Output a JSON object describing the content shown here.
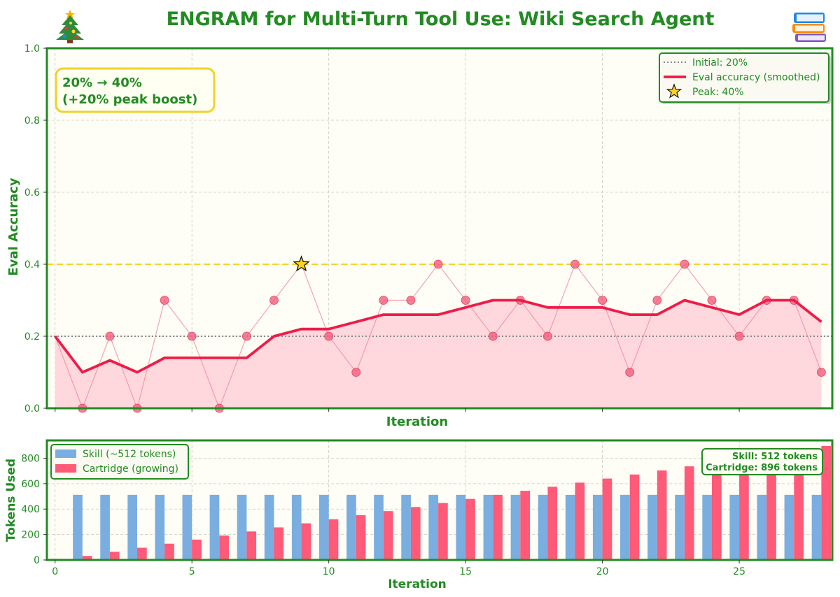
{
  "title": "ENGRAM for Multi-Turn Tool Use: Wiki Search Agent",
  "colors": {
    "accent": "#228B22",
    "eval": "#EE1C47",
    "eval_fill": "#FFD6DB",
    "skill": "#7AAEE0",
    "cartridge": "#FF5A78",
    "peak_line": "#F2D52A",
    "initial_line": "#888888",
    "plot_bg": "#FEFEF6"
  },
  "chart_data": [
    {
      "type": "line",
      "xlabel": "Iteration",
      "ylabel": "Eval Accuracy",
      "xlim": [
        -0.3,
        28.4
      ],
      "ylim": [
        0.0,
        1.0
      ],
      "y_ticks": [
        "0.0",
        "0.2",
        "0.4",
        "0.6",
        "0.8",
        "1.0"
      ],
      "grid": true,
      "legend_position": "top-right",
      "legend": [
        "Initial: 20%",
        "Eval accuracy (smoothed)",
        "Peak: 40%"
      ],
      "annotation": {
        "line1": "20% → 40%",
        "line2": "(+20% peak boost)"
      },
      "x": [
        0,
        1,
        2,
        3,
        4,
        5,
        6,
        7,
        8,
        9,
        10,
        11,
        12,
        13,
        14,
        15,
        16,
        17,
        18,
        19,
        20,
        21,
        22,
        23,
        24,
        25,
        26,
        27,
        28
      ],
      "raw": [
        0.2,
        0.0,
        0.2,
        0.0,
        0.3,
        0.2,
        0.0,
        0.2,
        0.3,
        0.4,
        0.2,
        0.1,
        0.3,
        0.3,
        0.4,
        0.3,
        0.2,
        0.3,
        0.2,
        0.4,
        0.3,
        0.1,
        0.3,
        0.4,
        0.3,
        0.2,
        0.3,
        0.3,
        0.1
      ],
      "smoothed": [
        0.2,
        0.1,
        0.133,
        0.1,
        0.14,
        0.14,
        0.14,
        0.14,
        0.2,
        0.22,
        0.22,
        0.24,
        0.26,
        0.26,
        0.26,
        0.28,
        0.3,
        0.3,
        0.28,
        0.28,
        0.28,
        0.26,
        0.26,
        0.3,
        0.28,
        0.26,
        0.3,
        0.3,
        0.24
      ],
      "initial": 0.2,
      "peak": {
        "x": 9,
        "y": 0.4
      }
    },
    {
      "type": "bar",
      "xlabel": "Iteration",
      "ylabel": "Tokens Used",
      "xlim": [
        -0.3,
        28.4
      ],
      "ylim": [
        0,
        940
      ],
      "x_ticks": [
        0,
        5,
        10,
        15,
        20,
        25
      ],
      "y_ticks": [
        0,
        200,
        400,
        600,
        800
      ],
      "grid": true,
      "legend_position": "top-left",
      "annotation": {
        "line1": "Skill: 512 tokens",
        "line2": "Cartridge: 896 tokens"
      },
      "categories": [
        1,
        2,
        3,
        4,
        5,
        6,
        7,
        8,
        9,
        10,
        11,
        12,
        13,
        14,
        15,
        16,
        17,
        18,
        19,
        20,
        21,
        22,
        23,
        24,
        25,
        26,
        27,
        28
      ],
      "series": [
        {
          "name": "Skill (~512 tokens)",
          "values": [
            512,
            512,
            512,
            512,
            512,
            512,
            512,
            512,
            512,
            512,
            512,
            512,
            512,
            512,
            512,
            512,
            512,
            512,
            512,
            512,
            512,
            512,
            512,
            512,
            512,
            512,
            512,
            512
          ]
        },
        {
          "name": "Cartridge (growing)",
          "values": [
            32,
            64,
            96,
            128,
            160,
            192,
            224,
            256,
            288,
            320,
            352,
            384,
            416,
            448,
            480,
            512,
            544,
            576,
            608,
            640,
            672,
            704,
            736,
            768,
            800,
            832,
            864,
            896
          ]
        }
      ]
    }
  ]
}
